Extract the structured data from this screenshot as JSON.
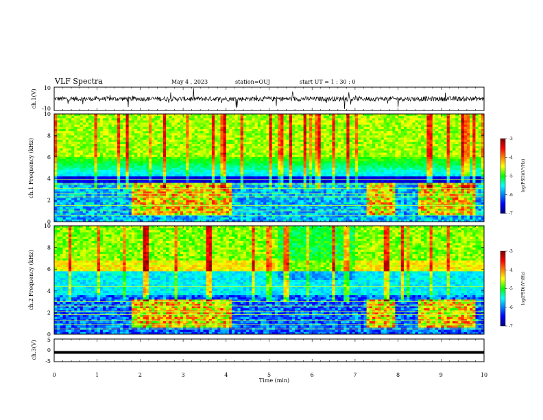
{
  "header": {
    "title": "VLF Spectra",
    "date": "May 4 , 2023",
    "station": "station=OUJ",
    "start": "start UT = 1 : 30 : 0"
  },
  "chart_data": [
    {
      "type": "line",
      "name": "ch1-waveform",
      "ylabel": "ch.1(V)",
      "ylim": [
        -10,
        10
      ],
      "y_ticks": [
        "10",
        "-10"
      ],
      "xlim": [
        0,
        10
      ],
      "baseline": 0
    },
    {
      "type": "heatmap",
      "name": "ch1-spectrogram",
      "ylabel": "ch.1 Frequency (kHz)",
      "ylim": [
        0,
        10
      ],
      "y_ticks": [
        "0",
        "2",
        "4",
        "6",
        "8",
        "10"
      ],
      "xlim": [
        0,
        10
      ],
      "colorbar": {
        "label": "log(PSD)(V²/Hz)",
        "range": [
          -7,
          -3
        ],
        "ticks": [
          "-3",
          "-4",
          "-5",
          "-6",
          "-7"
        ]
      },
      "enhanced_intervals_min": [
        [
          1.8,
          4.1
        ],
        [
          7.3,
          7.9
        ],
        [
          8.5,
          9.8
        ]
      ]
    },
    {
      "type": "heatmap",
      "name": "ch2-spectrogram",
      "ylabel": "ch.2 Frequency (kHz)",
      "ylim": [
        0,
        10
      ],
      "y_ticks": [
        "0",
        "2",
        "4",
        "6",
        "8",
        "10"
      ],
      "xlim": [
        0,
        10
      ],
      "colorbar": {
        "label": "log(PSD)(V²/Hz)",
        "range": [
          -7,
          -3
        ],
        "ticks": [
          "-3",
          "-4",
          "-5",
          "-6",
          "-7"
        ]
      },
      "enhanced_intervals_min": [
        [
          1.8,
          4.1
        ],
        [
          7.3,
          7.9
        ],
        [
          8.5,
          9.8
        ]
      ]
    },
    {
      "type": "line",
      "name": "ch3-waveform",
      "ylabel": "ch.3(V)",
      "ylim": [
        -5,
        5
      ],
      "y_ticks": [
        "5",
        "0",
        "-5"
      ],
      "xlim": [
        0,
        10
      ],
      "baseline": -0.9
    }
  ],
  "x_axis": {
    "label": "Time (min)",
    "ticks": [
      "0",
      "1",
      "2",
      "3",
      "4",
      "5",
      "6",
      "7",
      "8",
      "9",
      "10"
    ]
  },
  "colors": {
    "jet": [
      "#000080",
      "#0000ff",
      "#00ffff",
      "#00ff00",
      "#ffff00",
      "#ff0000",
      "#800000"
    ],
    "axis": "#000000"
  }
}
